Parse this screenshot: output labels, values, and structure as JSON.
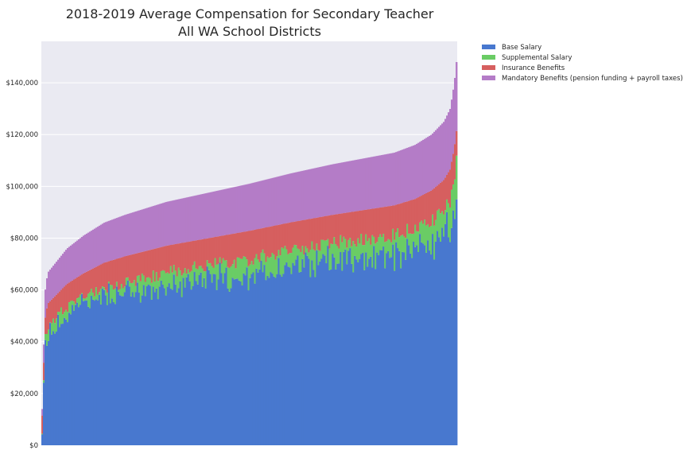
{
  "chart_data": {
    "type": "bar",
    "stacked": true,
    "title_lines": [
      "2018-2019 Average Compensation for Secondary Teacher",
      "All WA School Districts"
    ],
    "xlabel": "",
    "ylabel": "",
    "ylim": [
      0,
      156000
    ],
    "yticks": [
      0,
      20000,
      40000,
      60000,
      80000,
      100000,
      120000,
      140000
    ],
    "ytick_labels": [
      "$0",
      "$20,000",
      "$40,000",
      "$60,000",
      "$80,000",
      "$100,000",
      "$120,000",
      "$140,000"
    ],
    "grid": true,
    "legend_position": "outside-top-right",
    "n_districts": 262,
    "sorted_by": "total ascending",
    "series": [
      {
        "name": "Base Salary",
        "color": "#4878cf"
      },
      {
        "name": "Supplemental Salary",
        "color": "#6acc65"
      },
      {
        "name": "Insurance Benefits",
        "color": "#d65f5f"
      },
      {
        "name": "Mandatory Benefits (pension funding + payroll taxes)",
        "color": "#b47cc7"
      }
    ],
    "total_profile": {
      "fraction": [
        0,
        0.004,
        0.008,
        0.015,
        0.03,
        0.06,
        0.1,
        0.15,
        0.2,
        0.3,
        0.4,
        0.5,
        0.6,
        0.7,
        0.8,
        0.85,
        0.9,
        0.94,
        0.97,
        0.985,
        0.995,
        1
      ],
      "total": [
        14000,
        40000,
        62000,
        67000,
        70000,
        76000,
        81000,
        86000,
        89000,
        94000,
        97500,
        101000,
        105000,
        108500,
        111500,
        113000,
        116000,
        120000,
        125000,
        130000,
        140000,
        148000
      ]
    },
    "insurance_benefits_profile": {
      "fraction": [
        0,
        0.1,
        0.3,
        0.5,
        0.7,
        0.9,
        1
      ],
      "value": [
        8000,
        9500,
        10500,
        11000,
        11000,
        11500,
        12000
      ]
    },
    "mandatory_benefits_share_of_total": 0.18,
    "base_share_of_salary_profile": {
      "fraction": [
        0,
        0.3,
        0.6,
        1
      ],
      "share": [
        0.94,
        0.925,
        0.91,
        0.9
      ]
    }
  }
}
